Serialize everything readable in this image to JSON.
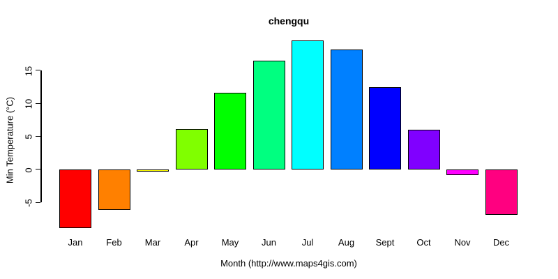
{
  "title": "chengqu",
  "chart_data": {
    "type": "bar",
    "title": "chengqu",
    "xlabel": "Month (http://www.maps4gis.com)",
    "ylabel": "Min Temperature (°C)",
    "categories": [
      "Jan",
      "Feb",
      "Mar",
      "Apr",
      "May",
      "Jun",
      "Jul",
      "Aug",
      "Sept",
      "Oct",
      "Nov",
      "Dec"
    ],
    "values": [
      -8.9,
      -6.2,
      -0.4,
      6.1,
      11.6,
      16.4,
      19.5,
      18.1,
      12.4,
      6.0,
      -0.9,
      -6.9
    ],
    "colors": [
      "#FF0000",
      "#FF8000",
      "#FFFF00",
      "#80FF00",
      "#00FF00",
      "#00FF80",
      "#00FFFF",
      "#0080FF",
      "#0000FF",
      "#8000FF",
      "#FF00FF",
      "#FF0080"
    ],
    "bar_border_color": "#000000",
    "yticks": [
      -5,
      0,
      5,
      10,
      15
    ],
    "ylim": [
      -9.5,
      19.5
    ],
    "grid": false,
    "legend": false,
    "background_color": "#FFFFFF",
    "axis_color": "#000000"
  }
}
